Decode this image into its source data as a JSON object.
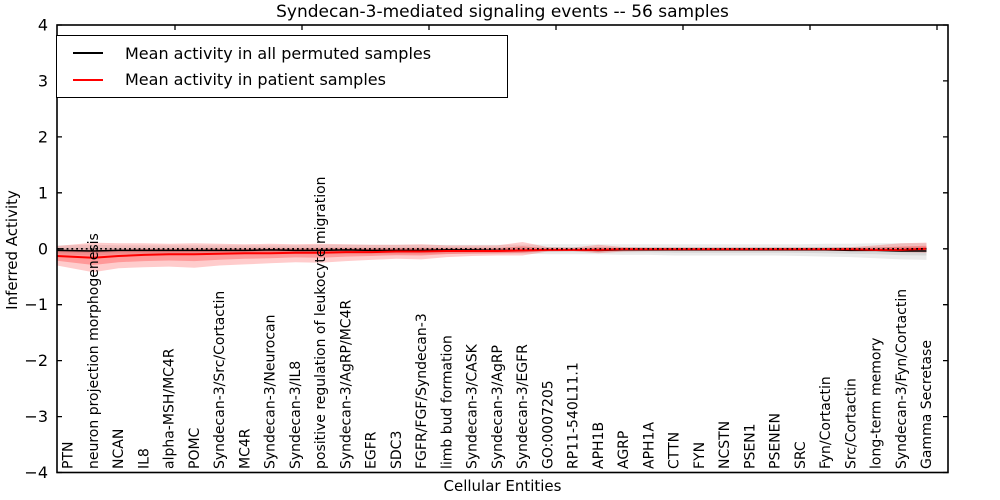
{
  "title": "Syndecan-3-mediated signaling events -- 56 samples",
  "axes": {
    "xlabel": "Cellular Entities",
    "ylabel": "Inferred Activity",
    "ytick_labels": [
      "4",
      "3",
      "2",
      "1",
      "0",
      "−1",
      "−2",
      "−3",
      "−4"
    ]
  },
  "legend": [
    {
      "label": "Mean activity in all permuted samples",
      "color": "#000000"
    },
    {
      "label": "Mean activity in patient samples",
      "color": "#ff0000"
    }
  ],
  "colors": {
    "permuted": "#000000",
    "patient": "#ff0000",
    "background": "#ffffff"
  },
  "chart_data": {
    "type": "line",
    "title": "Syndecan-3-mediated signaling events -- 56 samples",
    "xlabel": "Cellular Entities",
    "ylabel": "Inferred Activity",
    "ylim": [
      -4,
      4
    ],
    "grid": false,
    "legend_position": "upper left",
    "zero_reference_line": 0,
    "categories": [
      "PTN",
      "neuron projection morphogenesis",
      "NCAN",
      "IL8",
      "alpha-MSH/MC4R",
      "POMC",
      "Syndecan-3/Src/Cortactin",
      "MC4R",
      "Syndecan-3/Neurocan",
      "Syndecan-3/IL8",
      "positive regulation of leukocyte migration",
      "Syndecan-3/AgRP/MC4R",
      "EGFR",
      "SDC3",
      "FGFR/FGF/Syndecan-3",
      "limb bud formation",
      "Syndecan-3/CASK",
      "Syndecan-3/AgRP",
      "Syndecan-3/EGFR",
      "GO:0007205",
      "RP11-540L11.1",
      "APH1B",
      "AGRP",
      "APH1A",
      "CTTN",
      "FYN",
      "NCSTN",
      "PSEN1",
      "PSENEN",
      "SRC",
      "Fyn/Cortactin",
      "Src/Cortactin",
      "long-term memory",
      "Syndecan-3/Fyn/Cortactin",
      "Gamma Secretase"
    ],
    "series": [
      {
        "name": "Mean activity in all permuted samples",
        "color": "#000000",
        "style": "solid",
        "values": [
          -0.03,
          -0.04,
          -0.03,
          -0.03,
          -0.03,
          -0.03,
          -0.03,
          -0.03,
          -0.02,
          -0.03,
          -0.03,
          -0.02,
          -0.03,
          -0.03,
          -0.03,
          -0.02,
          -0.02,
          -0.03,
          -0.03,
          -0.02,
          -0.02,
          -0.03,
          -0.02,
          -0.02,
          -0.02,
          -0.02,
          -0.02,
          -0.02,
          -0.02,
          -0.02,
          -0.02,
          -0.03,
          -0.03,
          -0.04,
          -0.04
        ]
      },
      {
        "name": "Mean activity in patient samples",
        "color": "#ff0000",
        "style": "solid",
        "values": [
          -0.13,
          -0.16,
          -0.13,
          -0.11,
          -0.1,
          -0.1,
          -0.09,
          -0.08,
          -0.08,
          -0.07,
          -0.07,
          -0.06,
          -0.06,
          -0.05,
          -0.05,
          -0.04,
          -0.04,
          -0.04,
          -0.03,
          -0.02,
          -0.02,
          -0.02,
          -0.01,
          -0.01,
          -0.01,
          -0.01,
          -0.01,
          -0.01,
          -0.01,
          -0.01,
          -0.01,
          -0.01,
          -0.02,
          -0.02,
          0.0
        ]
      }
    ],
    "bands": [
      {
        "name": "permuted-samples-range",
        "color": "#000000",
        "upper": [
          0.06,
          0.07,
          0.06,
          0.06,
          0.06,
          0.06,
          0.06,
          0.06,
          0.06,
          0.06,
          0.07,
          0.07,
          0.07,
          0.07,
          0.07,
          0.07,
          0.07,
          0.07,
          0.07,
          0.08,
          0.08,
          0.08,
          0.08,
          0.08,
          0.08,
          0.08,
          0.08,
          0.08,
          0.08,
          0.08,
          0.09,
          0.09,
          0.1,
          0.1,
          0.1
        ],
        "lower": [
          -0.1,
          -0.12,
          -0.1,
          -0.1,
          -0.1,
          -0.1,
          -0.1,
          -0.1,
          -0.1,
          -0.1,
          -0.1,
          -0.1,
          -0.1,
          -0.1,
          -0.1,
          -0.09,
          -0.09,
          -0.09,
          -0.09,
          -0.1,
          -0.1,
          -0.1,
          -0.11,
          -0.11,
          -0.12,
          -0.12,
          -0.12,
          -0.12,
          -0.12,
          -0.13,
          -0.14,
          -0.15,
          -0.17,
          -0.19,
          -0.2
        ]
      },
      {
        "name": "patient-samples-range",
        "color": "#ff0000",
        "upper": [
          0.05,
          0.11,
          0.1,
          0.1,
          0.09,
          0.1,
          0.09,
          0.08,
          0.09,
          0.08,
          0.09,
          0.08,
          0.07,
          0.07,
          0.08,
          0.06,
          0.06,
          0.06,
          0.12,
          0.03,
          0.02,
          0.07,
          0.03,
          0.02,
          0.02,
          0.02,
          0.02,
          0.02,
          0.02,
          0.02,
          0.02,
          0.03,
          0.06,
          0.1,
          0.11
        ],
        "lower": [
          -0.3,
          -0.42,
          -0.35,
          -0.33,
          -0.32,
          -0.34,
          -0.3,
          -0.28,
          -0.26,
          -0.24,
          -0.25,
          -0.22,
          -0.2,
          -0.18,
          -0.19,
          -0.15,
          -0.13,
          -0.12,
          -0.12,
          -0.05,
          -0.04,
          -0.08,
          -0.05,
          -0.04,
          -0.03,
          -0.03,
          -0.03,
          -0.03,
          -0.03,
          -0.03,
          -0.03,
          -0.03,
          -0.04,
          -0.06,
          -0.07
        ]
      }
    ]
  }
}
